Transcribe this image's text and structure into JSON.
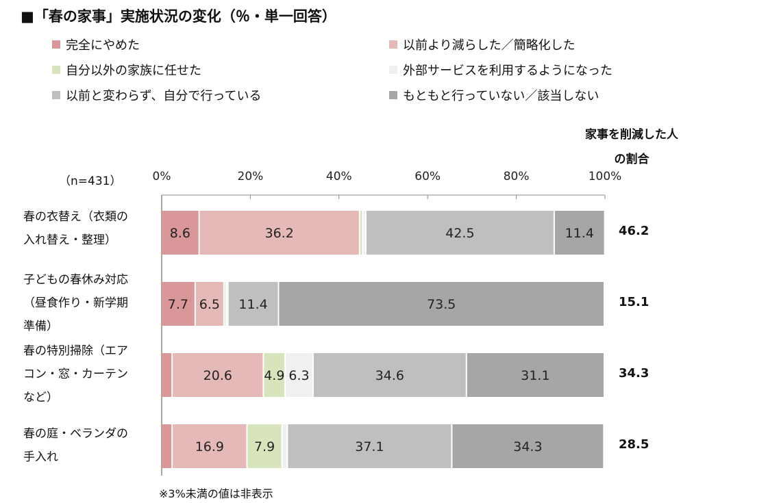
{
  "title": "■「春の家事」実施状況の変化（％・単一回答）",
  "n_label": "（n=431）",
  "right_header": [
    "家事を削減した人",
    "の割合"
  ],
  "footnote": "※3%未満の値は非表示",
  "chart_data": {
    "type": "bar",
    "orientation": "horizontal",
    "stacked": true,
    "title": "「春の家事」実施状況の変化（％・単一回答）",
    "xlim": [
      0,
      100
    ],
    "ticks": [
      "0%",
      "20%",
      "40%",
      "60%",
      "80%",
      "100%"
    ],
    "legend_placement": "top",
    "categories": [
      [
        "春の衣替え（衣類の",
        "入れ替え・整理）"
      ],
      [
        "子どもの春休み対応",
        "（昼食作り・新学期",
        "準備）"
      ],
      [
        "春の特別掃除（エア",
        "コン・窓・カーテン",
        "など）"
      ],
      [
        "春の庭・ベランダの",
        "手入れ"
      ]
    ],
    "series": [
      {
        "name": "完全にやめた",
        "color": "#d9979a",
        "values": [
          8.6,
          7.7,
          2.5,
          2.5
        ]
      },
      {
        "name": "以前より減らした／簡略化した",
        "color": "#e6b9b9",
        "values": [
          36.2,
          6.5,
          20.6,
          16.9
        ]
      },
      {
        "name": "自分以外の家族に任せた",
        "color": "#d8e4bc",
        "values": [
          0.7,
          0.5,
          4.9,
          7.9
        ]
      },
      {
        "name": "外部サービスを利用するようになった",
        "color": "#f0f0f0",
        "values": [
          0.7,
          0.4,
          6.3,
          1.2
        ]
      },
      {
        "name": "以前と変わらず、自分で行っている",
        "color": "#bfbfbf",
        "values": [
          42.5,
          11.4,
          34.6,
          37.1
        ]
      },
      {
        "name": "もともと行っていない／該当しない",
        "color": "#a6a6a6",
        "values": [
          11.4,
          73.5,
          31.1,
          34.3
        ]
      }
    ],
    "label_threshold": 3,
    "reduced_share": [
      "46.2",
      "15.1",
      "34.3",
      "28.5"
    ]
  }
}
